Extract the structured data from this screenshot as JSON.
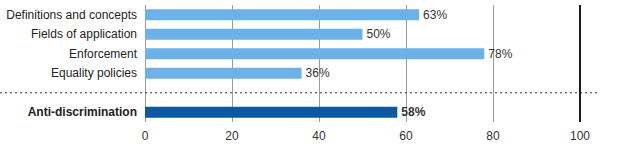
{
  "chart_data": {
    "type": "bar",
    "orientation": "horizontal",
    "categories": [
      "Definitions and concepts",
      "Fields of application",
      "Enforcement",
      "Equality policies",
      null,
      "Anti-discrimination"
    ],
    "values": [
      63,
      50,
      78,
      36,
      null,
      58
    ],
    "value_labels": [
      "63%",
      "50%",
      "78%",
      "36%",
      null,
      "58%"
    ],
    "colors": [
      "#6cb2e8",
      "#6cb2e8",
      "#6cb2e8",
      "#6cb2e8",
      null,
      "#0b5aa0"
    ],
    "xlim": [
      0,
      100
    ],
    "xticks": [
      0,
      20,
      40,
      60,
      80,
      100
    ],
    "grid": true,
    "data_labels": true
  }
}
